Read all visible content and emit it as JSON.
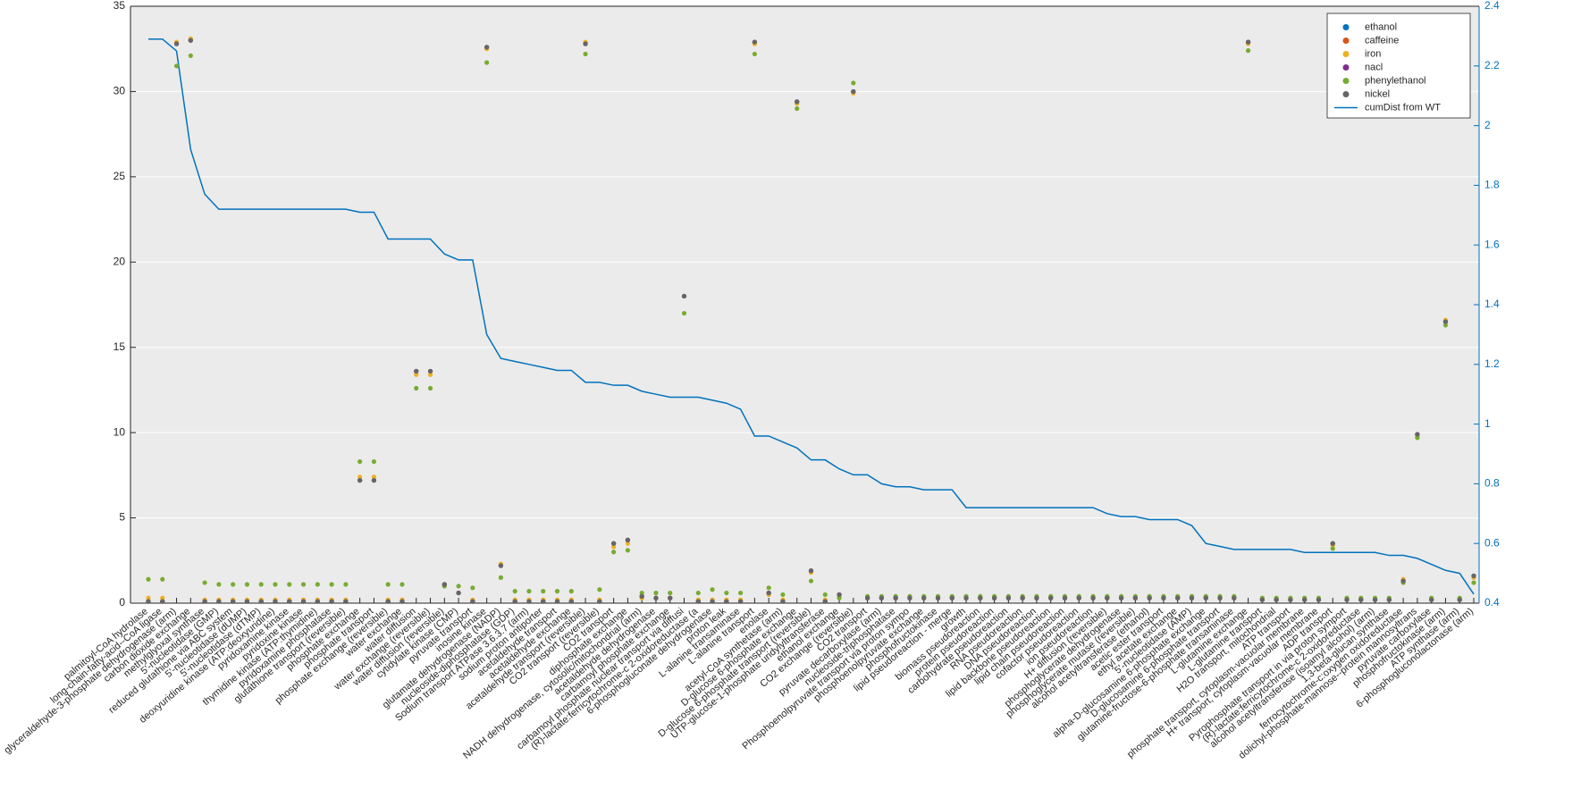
{
  "chart_data": {
    "type": "scatter",
    "categories": [
      "palmitoyl-CoA hydrolase",
      "long-chain-fatty-acid--CoA ligase",
      "glyceraldehyde-3-phosphate dehydrogenase (arm)",
      "carbon dioxide exchange",
      "methylglyoxal synthase",
      "5'-nucleotidase (GMP)",
      "reduced glutathione via ABC system",
      "5'-nucleotidase (dUMP)",
      "5'-nucleotidase (dTMP)",
      "deoxyuridine kinase (ATP:deoxyuridine)",
      "pyridoxamine kinase",
      "pyridoxine kinase",
      "thymidine kinase (ATP:thymidine)",
      "pyridoxamine phosphatase",
      "glutathione transport (reversible)",
      "phosphate exchange",
      "phosphate transport",
      "phosphate exchange (reversible)",
      "water exchange",
      "water diffusion",
      "water exchange (reversible)",
      "water diffusion (reversible)",
      "cytidylate kinase (CMP)",
      "pyruvate transport",
      "inosine kinase",
      "glutamate dehydrogenase (NADP)",
      "nucleoside-diphosphatase (GDP)",
      "Sodium transport ATPase 3.6.3.7 (arm)",
      "sodium proton antiporter",
      "acetaldehyde transport",
      "acetaldehyde exchange",
      "acetaldehyde transport (reversible)",
      "CO2 transport (reversible)",
      "CO2 transport",
      "diphosphate exchange",
      "NADH dehydrogenase, cytosolic/mitochondrial (arm)",
      "acetaldehyde dehydrogenase",
      "carbamoyl phosphate exchange",
      "carbamoyl phosphate nuclear transport via diffusi",
      "(R)-lactate:ferricytochrome-c 2-oxidoreductase (a",
      "6-phosphogluconate dehydrogenase",
      "proton leak",
      "L-alanine transaminase",
      "L-alanine transport",
      "enolase",
      "acetyl-CoA synthetase (arm)",
      "D-glucose 6-phosphate exchange",
      "D-glucose 6-phosphate transport (reversible)",
      "UTP-glucose-1-phosphate uridylyltransferase",
      "ethanol exchange",
      "CO2 exchange (reversible)",
      "CO2 transport",
      "pyruvate decarboxylase (arm)",
      "nucleoside-triphosphatase",
      "Phosphoenolpyruvate transport via proton sympo",
      "phosphoenolpyruvate exchange",
      "phosphofructokinase",
      "lipid pseudoreaction - merge",
      "growth",
      "biomass pseudoreaction",
      "protein pseudoreaction",
      "carbohydrate pseudoreaction",
      "RNA pseudoreaction",
      "DNA pseudoreaction",
      "lipid backbone pseudoreaction",
      "lipid chain pseudoreaction",
      "cofactor pseudoreaction",
      "ion pseudoreaction",
      "H+ diffusion (reversible)",
      "phosphoglycerate dehydrogenase",
      "phosphoglycerate mutase (reversible)",
      "alcohol acetyltransferase (ethanol)",
      "acetic ester transport",
      "ethyl acetate exchange",
      "5'-nucleotidase (AMP)",
      "alpha-D-glucosamine 6-phosphate exchange",
      "D-glucosamine 6-phosphate transport",
      "glutamine-fructose-6-phosphate transaminase",
      "L-glutamine exchange",
      "L-glutamine transport",
      "H2O transport, mitochondrial",
      "ATP transport",
      "phosphate transport, cytoplasm-vacuolar membrane",
      "H+ transport, cytoplasm-vacuolar membrane",
      "ADP transport",
      "Pyrophosphate transport in via proton symport",
      "(R)-lactate:ferricytochrome-c 2-oxidoreductase",
      "alcohol acetyltransferase (isoamyl alcohol) (arm)",
      "1,3-beta-glucan synthase",
      "ferrocytochrome-c:oxygen oxidoreductase",
      "dolichyl-phosphate-mannose--protein mannosyltrans",
      "pyruvate carboxylase",
      "phosphofructokinase (arm)",
      "ATP synthase (arm)",
      "6-phosphogluconolactonase (arm)"
    ],
    "series": [
      {
        "name": "ethanol",
        "color": "#0072bd",
        "values": [
          0.1,
          0.1,
          32.8,
          33,
          0.1,
          0.1,
          0.1,
          0.1,
          0.1,
          0.1,
          0.1,
          0.1,
          0.1,
          0.1,
          0.1,
          7.2,
          7.2,
          0.1,
          0.1,
          13.6,
          13.6,
          1.1,
          0.6,
          0.1,
          32.6,
          2.2,
          0.1,
          0.1,
          0.1,
          0.1,
          0.1,
          32.8,
          0.1,
          3.5,
          3.7,
          0.4,
          0.3,
          0.3,
          18,
          0.1,
          0.1,
          0.1,
          0.1,
          32.9,
          0.6,
          0.1,
          29.4,
          1.9,
          0.1,
          0.5,
          30,
          0.3,
          0.3,
          0.3,
          0.3,
          0.3,
          0.3,
          0.3,
          0.3,
          0.3,
          0.3,
          0.3,
          0.3,
          0.3,
          0.3,
          0.3,
          0.3,
          0.3,
          0.3,
          0.3,
          0.3,
          0.3,
          0.3,
          0.3,
          0.3,
          0.3,
          0.3,
          0.3,
          32.9,
          0.2,
          0.2,
          0.2,
          0.2,
          0.2,
          3.5,
          0.2,
          0.2,
          0.2,
          0.2,
          1.3,
          9.9,
          0.2,
          16.5,
          0.2,
          1.6
        ]
      },
      {
        "name": "caffeine",
        "color": "#d95319",
        "values": [
          0.1,
          0.1,
          32.8,
          33,
          0.1,
          0.1,
          0.1,
          0.1,
          0.1,
          0.1,
          0.1,
          0.1,
          0.1,
          0.1,
          0.1,
          7.2,
          7.2,
          0.1,
          0.1,
          13.6,
          13.6,
          1.1,
          0.6,
          0.1,
          32.6,
          2.2,
          0.1,
          0.1,
          0.1,
          0.1,
          0.1,
          32.8,
          0.1,
          3.5,
          3.7,
          0.4,
          0.3,
          0.3,
          18,
          0.1,
          0.1,
          0.1,
          0.1,
          32.9,
          0.6,
          0.1,
          29.4,
          1.9,
          0.1,
          0.5,
          30,
          0.3,
          0.3,
          0.3,
          0.3,
          0.3,
          0.3,
          0.3,
          0.3,
          0.3,
          0.3,
          0.3,
          0.3,
          0.3,
          0.3,
          0.3,
          0.3,
          0.3,
          0.3,
          0.3,
          0.3,
          0.3,
          0.3,
          0.3,
          0.3,
          0.3,
          0.3,
          0.3,
          32.9,
          0.2,
          0.2,
          0.2,
          0.2,
          0.2,
          3.5,
          0.2,
          0.2,
          0.2,
          0.2,
          1.3,
          9.9,
          0.2,
          16.5,
          0.2,
          1.6
        ]
      },
      {
        "name": "iron",
        "color": "#edb120",
        "values": [
          0.3,
          0.3,
          32.9,
          33.1,
          0.2,
          0.2,
          0.2,
          0.2,
          0.2,
          0.2,
          0.2,
          0.2,
          0.2,
          0.2,
          0.2,
          7.4,
          7.4,
          0.2,
          0.2,
          13.4,
          13.4,
          1,
          0.6,
          0.2,
          32.5,
          2.3,
          0.2,
          0.2,
          0.2,
          0.2,
          0.2,
          32.9,
          0.2,
          3.3,
          3.5,
          0.3,
          0.3,
          0.3,
          18,
          0.2,
          0.2,
          0.2,
          0.2,
          32.8,
          0.5,
          0.2,
          29.3,
          1.8,
          0.2,
          0.4,
          29.9,
          0.3,
          0.3,
          0.3,
          0.3,
          0.3,
          0.3,
          0.3,
          0.3,
          0.3,
          0.3,
          0.3,
          0.3,
          0.3,
          0.3,
          0.3,
          0.3,
          0.3,
          0.3,
          0.3,
          0.3,
          0.3,
          0.3,
          0.3,
          0.3,
          0.3,
          0.3,
          0.3,
          32.8,
          0.2,
          0.2,
          0.2,
          0.2,
          0.2,
          3.4,
          0.2,
          0.2,
          0.2,
          0.2,
          1.4,
          9.8,
          0.2,
          16.6,
          0.2,
          1.5
        ]
      },
      {
        "name": "nacl",
        "color": "#7e2f8e",
        "values": [
          0.1,
          0.1,
          32.8,
          33,
          0.1,
          0.1,
          0.1,
          0.1,
          0.1,
          0.1,
          0.1,
          0.1,
          0.1,
          0.1,
          0.1,
          7.2,
          7.2,
          0.1,
          0.1,
          13.6,
          13.6,
          1.1,
          0.6,
          0.1,
          32.6,
          2.2,
          0.1,
          0.1,
          0.1,
          0.1,
          0.1,
          32.8,
          0.1,
          3.5,
          3.7,
          0.4,
          0.3,
          0.3,
          18,
          0.1,
          0.1,
          0.1,
          0.1,
          32.9,
          0.6,
          0.1,
          29.4,
          1.9,
          0.1,
          0.5,
          30,
          0.3,
          0.3,
          0.3,
          0.3,
          0.3,
          0.3,
          0.3,
          0.3,
          0.3,
          0.3,
          0.3,
          0.3,
          0.3,
          0.3,
          0.3,
          0.3,
          0.3,
          0.3,
          0.3,
          0.3,
          0.3,
          0.3,
          0.3,
          0.3,
          0.3,
          0.3,
          0.3,
          32.9,
          0.2,
          0.2,
          0.2,
          0.2,
          0.2,
          3.5,
          0.2,
          0.2,
          0.2,
          0.2,
          1.3,
          9.9,
          0.2,
          16.5,
          0.2,
          1.6
        ]
      },
      {
        "name": "phenylethanol",
        "color": "#77ac30",
        "values": [
          1.4,
          1.4,
          31.5,
          32.1,
          1.2,
          1.1,
          1.1,
          1.1,
          1.1,
          1.1,
          1.1,
          1.1,
          1.1,
          1.1,
          1.1,
          8.3,
          8.3,
          1.1,
          1.1,
          12.6,
          12.6,
          1,
          1,
          0.9,
          31.7,
          1.5,
          0.7,
          0.7,
          0.7,
          0.7,
          0.7,
          32.2,
          0.8,
          3,
          3.1,
          0.6,
          0.6,
          0.6,
          17,
          0.6,
          0.8,
          0.6,
          0.6,
          32.2,
          0.9,
          0.5,
          29,
          1.3,
          0.5,
          0.3,
          30.5,
          0.4,
          0.4,
          0.4,
          0.4,
          0.4,
          0.4,
          0.4,
          0.4,
          0.4,
          0.4,
          0.4,
          0.4,
          0.4,
          0.4,
          0.4,
          0.4,
          0.4,
          0.4,
          0.4,
          0.4,
          0.4,
          0.4,
          0.4,
          0.4,
          0.4,
          0.4,
          0.4,
          32.4,
          0.3,
          0.3,
          0.3,
          0.3,
          0.3,
          3.2,
          0.3,
          0.3,
          0.3,
          0.3,
          1.2,
          9.7,
          0.3,
          16.3,
          0.3,
          1.2
        ]
      },
      {
        "name": "nickel",
        "color": "#666666",
        "values": [
          0.1,
          0.1,
          32.8,
          33,
          0.1,
          0.1,
          0.1,
          0.1,
          0.1,
          0.1,
          0.1,
          0.1,
          0.1,
          0.1,
          0.1,
          7.2,
          7.2,
          0.1,
          0.1,
          13.6,
          13.6,
          1.1,
          0.6,
          0.1,
          32.6,
          2.2,
          0.1,
          0.1,
          0.1,
          0.1,
          0.1,
          32.8,
          0.1,
          3.5,
          3.7,
          0.4,
          0.3,
          0.3,
          18,
          0.1,
          0.1,
          0.1,
          0.1,
          32.9,
          0.6,
          0.1,
          29.4,
          1.9,
          0.1,
          0.5,
          30,
          0.3,
          0.3,
          0.3,
          0.3,
          0.3,
          0.3,
          0.3,
          0.3,
          0.3,
          0.3,
          0.3,
          0.3,
          0.3,
          0.3,
          0.3,
          0.3,
          0.3,
          0.3,
          0.3,
          0.3,
          0.3,
          0.3,
          0.3,
          0.3,
          0.3,
          0.3,
          0.3,
          32.9,
          0.2,
          0.2,
          0.2,
          0.2,
          0.2,
          3.5,
          0.2,
          0.2,
          0.2,
          0.2,
          1.3,
          9.9,
          0.2,
          16.5,
          0.2,
          1.6
        ]
      },
      {
        "name": "cumDist from WT",
        "color": "#0072bd",
        "type": "line",
        "axis": "y2",
        "values": [
          2.29,
          2.29,
          2.25,
          1.92,
          1.77,
          1.72,
          1.72,
          1.72,
          1.72,
          1.72,
          1.72,
          1.72,
          1.72,
          1.72,
          1.72,
          1.71,
          1.71,
          1.62,
          1.62,
          1.62,
          1.62,
          1.57,
          1.55,
          1.55,
          1.3,
          1.22,
          1.21,
          1.2,
          1.19,
          1.18,
          1.18,
          1.14,
          1.14,
          1.13,
          1.13,
          1.11,
          1.1,
          1.09,
          1.09,
          1.09,
          1.08,
          1.07,
          1.05,
          0.96,
          0.96,
          0.94,
          0.92,
          0.88,
          0.88,
          0.85,
          0.83,
          0.83,
          0.8,
          0.79,
          0.79,
          0.78,
          0.78,
          0.78,
          0.72,
          0.72,
          0.72,
          0.72,
          0.72,
          0.72,
          0.72,
          0.72,
          0.72,
          0.72,
          0.7,
          0.69,
          0.69,
          0.68,
          0.68,
          0.68,
          0.66,
          0.6,
          0.59,
          0.58,
          0.58,
          0.58,
          0.58,
          0.58,
          0.57,
          0.57,
          0.57,
          0.57,
          0.57,
          0.57,
          0.56,
          0.56,
          0.55,
          0.53,
          0.51,
          0.5,
          0.43
        ]
      }
    ],
    "ylim": [
      0,
      35
    ],
    "yticks": [
      0,
      5,
      10,
      15,
      20,
      25,
      30,
      35
    ],
    "y2lim": [
      0.4,
      2.4
    ],
    "y2ticks": [
      0.4,
      0.6,
      0.8,
      1,
      1.2,
      1.4,
      1.6,
      1.8,
      2,
      2.2,
      2.4
    ],
    "y2color": "#0072bd",
    "grid": true,
    "legend": "upper right"
  }
}
